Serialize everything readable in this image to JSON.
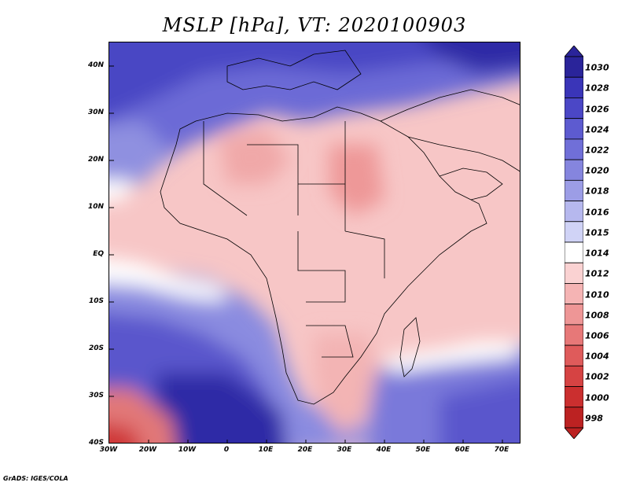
{
  "title": "MSLP [hPa], VT: 2020100903",
  "footer": "GrADS: IGES/COLA",
  "latitude_labels": [
    "40N",
    "30N",
    "20N",
    "10N",
    "EQ",
    "10S",
    "20S",
    "30S",
    "40S"
  ],
  "longitude_labels": [
    "30W",
    "20W",
    "10W",
    "0",
    "10E",
    "20E",
    "30E",
    "40E",
    "50E",
    "60E",
    "70E"
  ],
  "colorbar": {
    "labels": [
      "1030",
      "1028",
      "1026",
      "1024",
      "1022",
      "1020",
      "1018",
      "1016",
      "1015",
      "1014",
      "1012",
      "1010",
      "1008",
      "1006",
      "1004",
      "1002",
      "1000",
      "998"
    ],
    "colors": [
      "#2a249a",
      "#3a35b8",
      "#4b47c6",
      "#5d5bd0",
      "#706fd8",
      "#8585de",
      "#9c9de6",
      "#b6b8ee",
      "#d0d3f6",
      "#ffffff",
      "#fad2d2",
      "#f5b4b4",
      "#ee9696",
      "#e77878",
      "#df5b5b",
      "#d64343",
      "#cb2f2f",
      "#bc2222"
    ]
  }
}
